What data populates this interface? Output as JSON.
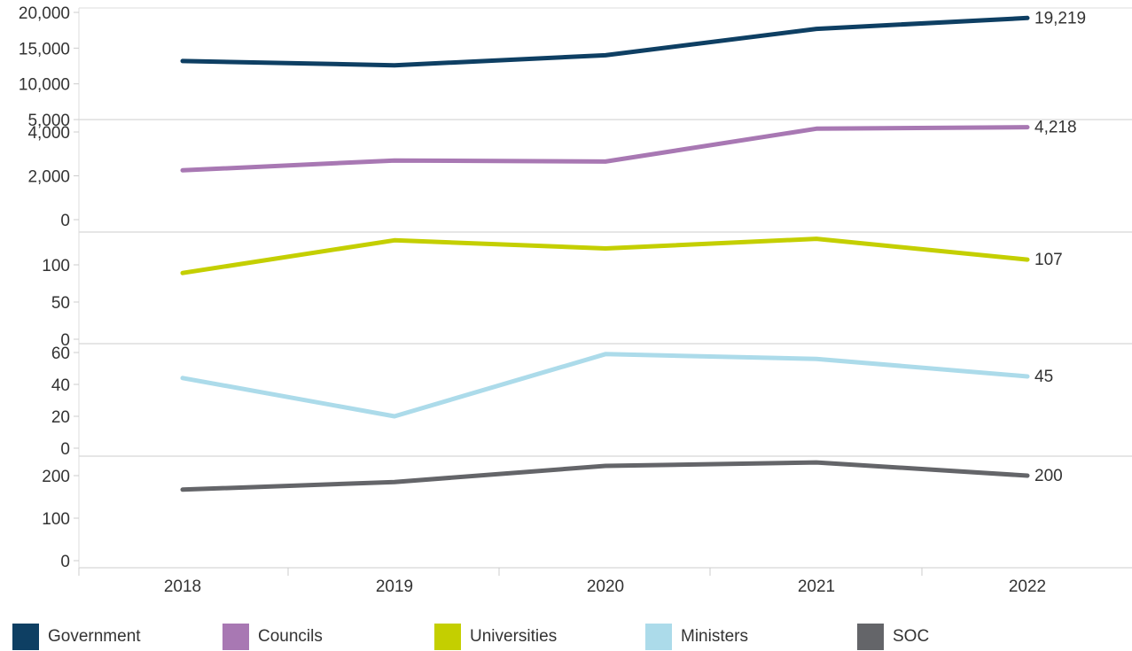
{
  "chart_data": {
    "type": "line",
    "x": [
      "2018",
      "2019",
      "2020",
      "2021",
      "2022"
    ],
    "panels": [
      {
        "series": {
          "name": "Government",
          "color": "#0e3f63",
          "values": [
            13200,
            12600,
            14000,
            17700,
            19219
          ]
        },
        "ylim": [
          0,
          20000
        ],
        "ticks": [
          5000,
          10000,
          15000,
          20000
        ],
        "tick_labels": [
          "5,000",
          "10,000",
          "15,000",
          "20,000"
        ],
        "end_label": "19,219"
      },
      {
        "series": {
          "name": "Councils",
          "color": "#a878b3",
          "values": [
            2250,
            2700,
            2650,
            4150,
            4218
          ]
        },
        "ylim": [
          0,
          4500
        ],
        "ticks": [
          0,
          2000,
          4000
        ],
        "tick_labels": [
          "0",
          "2,000",
          "4,000"
        ],
        "end_label": "4,218"
      },
      {
        "series": {
          "name": "Universities",
          "color": "#c4cf00",
          "values": [
            89,
            133,
            122,
            135,
            107
          ]
        },
        "ylim": [
          0,
          145
        ],
        "ticks": [
          0,
          50,
          100
        ],
        "tick_labels": [
          "0",
          "50",
          "100"
        ],
        "end_label": "107"
      },
      {
        "series": {
          "name": "Ministers",
          "color": "#acdbea",
          "values": [
            44,
            20,
            59,
            56,
            45
          ]
        },
        "ylim": [
          0,
          65
        ],
        "ticks": [
          0,
          20,
          40,
          60
        ],
        "tick_labels": [
          "0",
          "20",
          "40",
          "60"
        ],
        "end_label": "45"
      },
      {
        "series": {
          "name": "SOC",
          "color": "#646569",
          "values": [
            167,
            185,
            223,
            231,
            200
          ]
        },
        "ylim": [
          0,
          255
        ],
        "ticks": [
          0,
          100,
          200
        ],
        "tick_labels": [
          "0",
          "100",
          "200"
        ],
        "end_label": "200"
      }
    ],
    "legend": {
      "position": "bottom",
      "items": [
        {
          "label": "Government",
          "color": "#0e3f63"
        },
        {
          "label": "Councils",
          "color": "#a878b3"
        },
        {
          "label": "Universities",
          "color": "#c4cf00"
        },
        {
          "label": "Ministers",
          "color": "#acdbea"
        },
        {
          "label": "SOC",
          "color": "#646569"
        }
      ]
    },
    "grid": false,
    "title": "",
    "xlabel": "",
    "ylabel": ""
  }
}
